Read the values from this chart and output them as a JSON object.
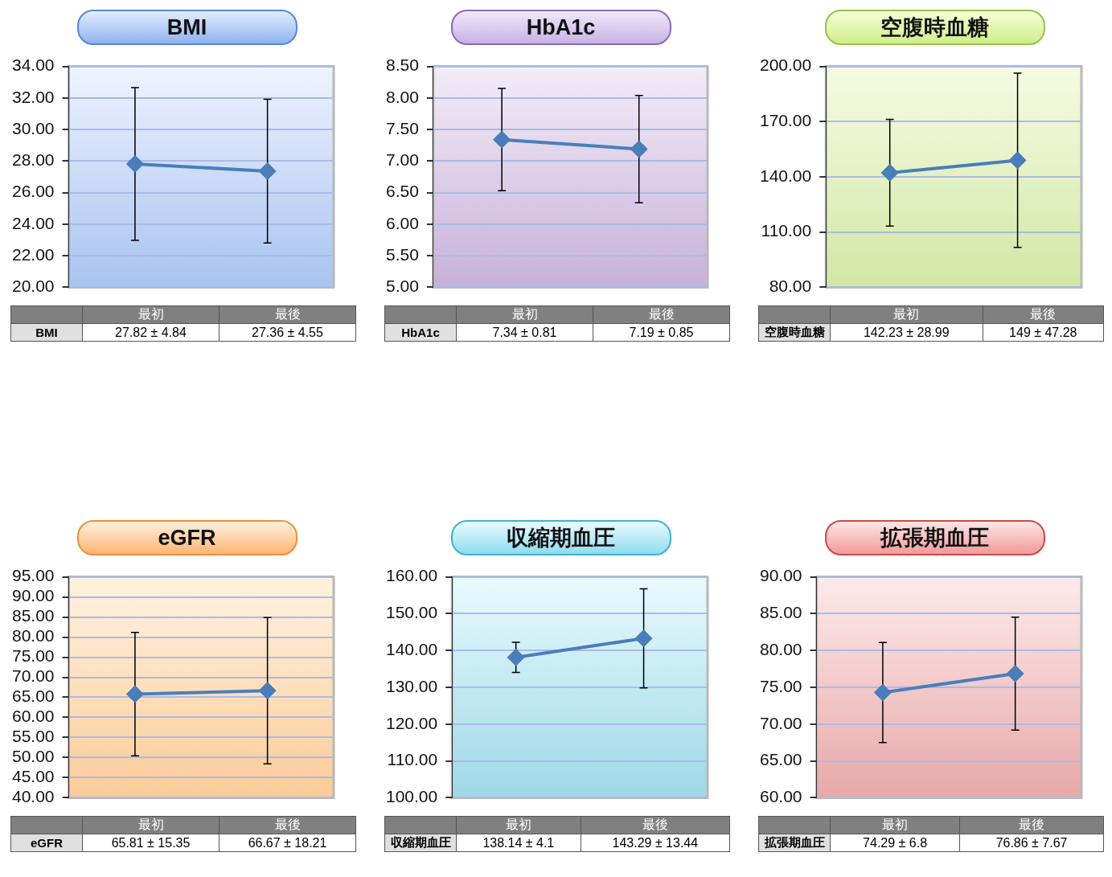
{
  "chart_data": [
    {
      "type": "line",
      "title": "BMI",
      "categories": [
        "最初",
        "最後"
      ],
      "series": [
        {
          "color": "#4a7ebb",
          "values": [
            27.82,
            27.36
          ],
          "errors": [
            4.84,
            4.55
          ],
          "value_labels": [
            "27.82 ± 4.84",
            "27.36 ± 4.55"
          ]
        }
      ],
      "ylim": [
        20,
        34
      ],
      "yticks": [
        {
          "value": 20,
          "label": "20.00"
        },
        {
          "value": 22,
          "label": "22.00"
        },
        {
          "value": 24,
          "label": "24.00"
        },
        {
          "value": 26,
          "label": "26.00"
        },
        {
          "value": 28,
          "label": "28.00"
        },
        {
          "value": 30,
          "label": "30.00"
        },
        {
          "value": 32,
          "label": "32.00"
        },
        {
          "value": 34,
          "label": "34.00"
        }
      ],
      "grid": "y",
      "marker": "diamond",
      "tick_labels": "y"
    },
    {
      "type": "line",
      "title": "HbA1c",
      "categories": [
        "最初",
        "最後"
      ],
      "series": [
        {
          "color": "#4a7ebb",
          "values": [
            7.34,
            7.19
          ],
          "errors": [
            0.81,
            0.85
          ],
          "value_labels": [
            "7.34 ± 0.81",
            "7.19 ± 0.85"
          ]
        }
      ],
      "ylim": [
        5,
        8.5
      ],
      "yticks": [
        {
          "value": 5,
          "label": "5.00"
        },
        {
          "value": 5.5,
          "label": "5.50"
        },
        {
          "value": 6,
          "label": "6.00"
        },
        {
          "value": 6.5,
          "label": "6.50"
        },
        {
          "value": 7,
          "label": "7.00"
        },
        {
          "value": 7.5,
          "label": "7.50"
        },
        {
          "value": 8,
          "label": "8.00"
        },
        {
          "value": 8.5,
          "label": "8.50"
        }
      ],
      "grid": "y",
      "marker": "diamond",
      "tick_labels": "y"
    },
    {
      "type": "line",
      "title": "空腹時血糖",
      "categories": [
        "最初",
        "最後"
      ],
      "series": [
        {
          "color": "#4a7ebb",
          "values": [
            142.23,
            149
          ],
          "errors": [
            28.99,
            47.28
          ],
          "value_labels": [
            "142.23 ± 28.99",
            "149 ± 47.28"
          ]
        }
      ],
      "ylim": [
        80,
        200
      ],
      "yticks": [
        {
          "value": 80,
          "label": "80.00"
        },
        {
          "value": 110,
          "label": "110.00"
        },
        {
          "value": 140,
          "label": "140.00"
        },
        {
          "value": 170,
          "label": "170.00"
        },
        {
          "value": 200,
          "label": "200.00"
        }
      ],
      "grid": "y",
      "marker": "diamond",
      "tick_labels": "y"
    },
    {
      "type": "line",
      "title": "eGFR",
      "categories": [
        "最初",
        "最後"
      ],
      "series": [
        {
          "color": "#4a7ebb",
          "values": [
            65.81,
            66.67
          ],
          "errors": [
            15.35,
            18.21
          ],
          "value_labels": [
            "65.81 ± 15.35",
            "66.67 ± 18.21"
          ]
        }
      ],
      "ylim": [
        40,
        95
      ],
      "yticks": [
        {
          "value": 40,
          "label": "40.00"
        },
        {
          "value": 45,
          "label": "45.00"
        },
        {
          "value": 50,
          "label": "50.00"
        },
        {
          "value": 55,
          "label": "55.00"
        },
        {
          "value": 60,
          "label": "60.00"
        },
        {
          "value": 65,
          "label": "65.00"
        },
        {
          "value": 70,
          "label": "70.00"
        },
        {
          "value": 75,
          "label": "75.00"
        },
        {
          "value": 80,
          "label": "80.00"
        },
        {
          "value": 85,
          "label": "85.00"
        },
        {
          "value": 90,
          "label": "90.00"
        },
        {
          "value": 95,
          "label": "95.00"
        }
      ],
      "grid": "y",
      "marker": "diamond",
      "tick_labels": "y"
    },
    {
      "type": "line",
      "title": "収縮期血圧",
      "categories": [
        "最初",
        "最後"
      ],
      "series": [
        {
          "color": "#4a7ebb",
          "values": [
            138.14,
            143.29
          ],
          "errors": [
            4.1,
            13.44
          ],
          "value_labels": [
            "138.14 ± 4.1",
            "143.29 ± 13.44"
          ]
        }
      ],
      "ylim": [
        100,
        160
      ],
      "yticks": [
        {
          "value": 100,
          "label": "100.00"
        },
        {
          "value": 110,
          "label": "110.00"
        },
        {
          "value": 120,
          "label": "120.00"
        },
        {
          "value": 130,
          "label": "130.00"
        },
        {
          "value": 140,
          "label": "140.00"
        },
        {
          "value": 150,
          "label": "150.00"
        },
        {
          "value": 160,
          "label": "160.00"
        }
      ],
      "grid": "y",
      "marker": "diamond",
      "tick_labels": "y"
    },
    {
      "type": "line",
      "title": "拡張期血圧",
      "categories": [
        "最初",
        "最後"
      ],
      "series": [
        {
          "color": "#4a7ebb",
          "values": [
            74.29,
            76.86
          ],
          "errors": [
            6.8,
            7.67
          ],
          "value_labels": [
            "74.29 ± 6.8",
            "76.86 ± 7.67"
          ]
        }
      ],
      "ylim": [
        60,
        90
      ],
      "yticks": [
        {
          "value": 60,
          "label": "60.00"
        },
        {
          "value": 65,
          "label": "65.00"
        },
        {
          "value": 70,
          "label": "70.00"
        },
        {
          "value": 75,
          "label": "75.00"
        },
        {
          "value": 80,
          "label": "80.00"
        },
        {
          "value": 85,
          "label": "85.00"
        },
        {
          "value": 90,
          "label": "90.00"
        }
      ],
      "grid": "y",
      "marker": "diamond",
      "tick_labels": "y"
    }
  ]
}
